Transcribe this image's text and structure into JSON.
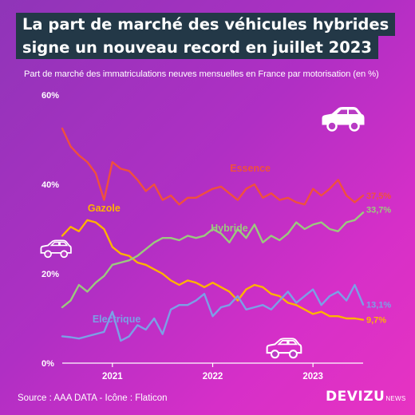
{
  "header": {
    "title_line1": "La part de marché des véhicules hybrides",
    "title_line2": "signe un nouveau record en juillet 2023",
    "subtitle": "Part de marché des immatriculations neuves mensuelles en France par motorisation (en %)"
  },
  "footer": {
    "source": "Source : AAA DATA - Icône : Flaticon",
    "brand_main": "DEVIZU",
    "brand_sub": "NEWS"
  },
  "icons": [
    "car-icon",
    "car-icon",
    "car-icon"
  ],
  "chart_data": {
    "type": "line",
    "title": "La part de marché des véhicules hybrides signe un nouveau record en juillet 2023",
    "subtitle": "Part de marché des immatriculations neuves mensuelles en France par motorisation (en %)",
    "x_start": "2020-07",
    "x_end": "2023-07",
    "x_tick_labels": [
      "2021",
      "2022",
      "2023"
    ],
    "y_tick_labels": [
      "0%",
      "20%",
      "40%",
      "60%"
    ],
    "ylim": [
      0,
      60
    ],
    "grid": false,
    "legend": "inline labels",
    "series": [
      {
        "name": "Essence",
        "color": "#f0503e",
        "end_label": "37,5%",
        "values": [
          52.5,
          48.5,
          46.5,
          45.0,
          42.5,
          36.5,
          45.0,
          43.5,
          43.0,
          41.0,
          38.5,
          40.0,
          36.5,
          37.5,
          35.5,
          37.0,
          37.0,
          38.0,
          39.0,
          39.5,
          38.0,
          36.5,
          39.0,
          40.0,
          37.0,
          38.0,
          36.5,
          37.0,
          36.0,
          35.5,
          39.0,
          37.5,
          39.0,
          41.0,
          37.5,
          36.0,
          37.5
        ]
      },
      {
        "name": "Gazole",
        "color": "#ffb300",
        "end_label": "9,7%",
        "values": [
          28.5,
          30.5,
          29.5,
          32.0,
          31.5,
          30.0,
          26.0,
          24.5,
          24.0,
          22.5,
          22.0,
          21.0,
          20.0,
          18.5,
          17.5,
          18.5,
          18.0,
          17.0,
          18.0,
          17.0,
          16.0,
          14.0,
          16.5,
          17.5,
          17.0,
          15.5,
          15.0,
          13.5,
          13.0,
          12.0,
          11.0,
          11.5,
          10.5,
          10.5,
          10.0,
          10.0,
          9.7
        ]
      },
      {
        "name": "Hybride",
        "color": "#9bc97e",
        "end_label": "33,7%",
        "values": [
          12.5,
          14.0,
          17.5,
          16.0,
          18.0,
          19.5,
          22.0,
          22.5,
          23.0,
          24.0,
          25.5,
          27.0,
          28.0,
          28.0,
          27.5,
          28.5,
          28.0,
          28.5,
          30.0,
          29.0,
          27.0,
          30.0,
          28.0,
          31.0,
          27.0,
          28.5,
          27.5,
          29.0,
          31.5,
          30.0,
          31.0,
          31.5,
          30.0,
          29.5,
          31.5,
          32.0,
          33.7
        ]
      },
      {
        "name": "Electrique",
        "color": "#7ba0e6",
        "end_label": "13,1%",
        "values": [
          6.0,
          5.8,
          5.5,
          6.0,
          6.5,
          7.0,
          11.5,
          5.0,
          6.0,
          8.5,
          7.5,
          10.0,
          6.5,
          12.0,
          13.0,
          13.0,
          14.0,
          15.5,
          10.5,
          12.5,
          13.0,
          15.0,
          12.0,
          12.5,
          13.0,
          12.0,
          14.0,
          16.0,
          13.5,
          15.0,
          16.5,
          13.0,
          15.0,
          16.0,
          14.0,
          17.5,
          13.1
        ]
      }
    ]
  }
}
